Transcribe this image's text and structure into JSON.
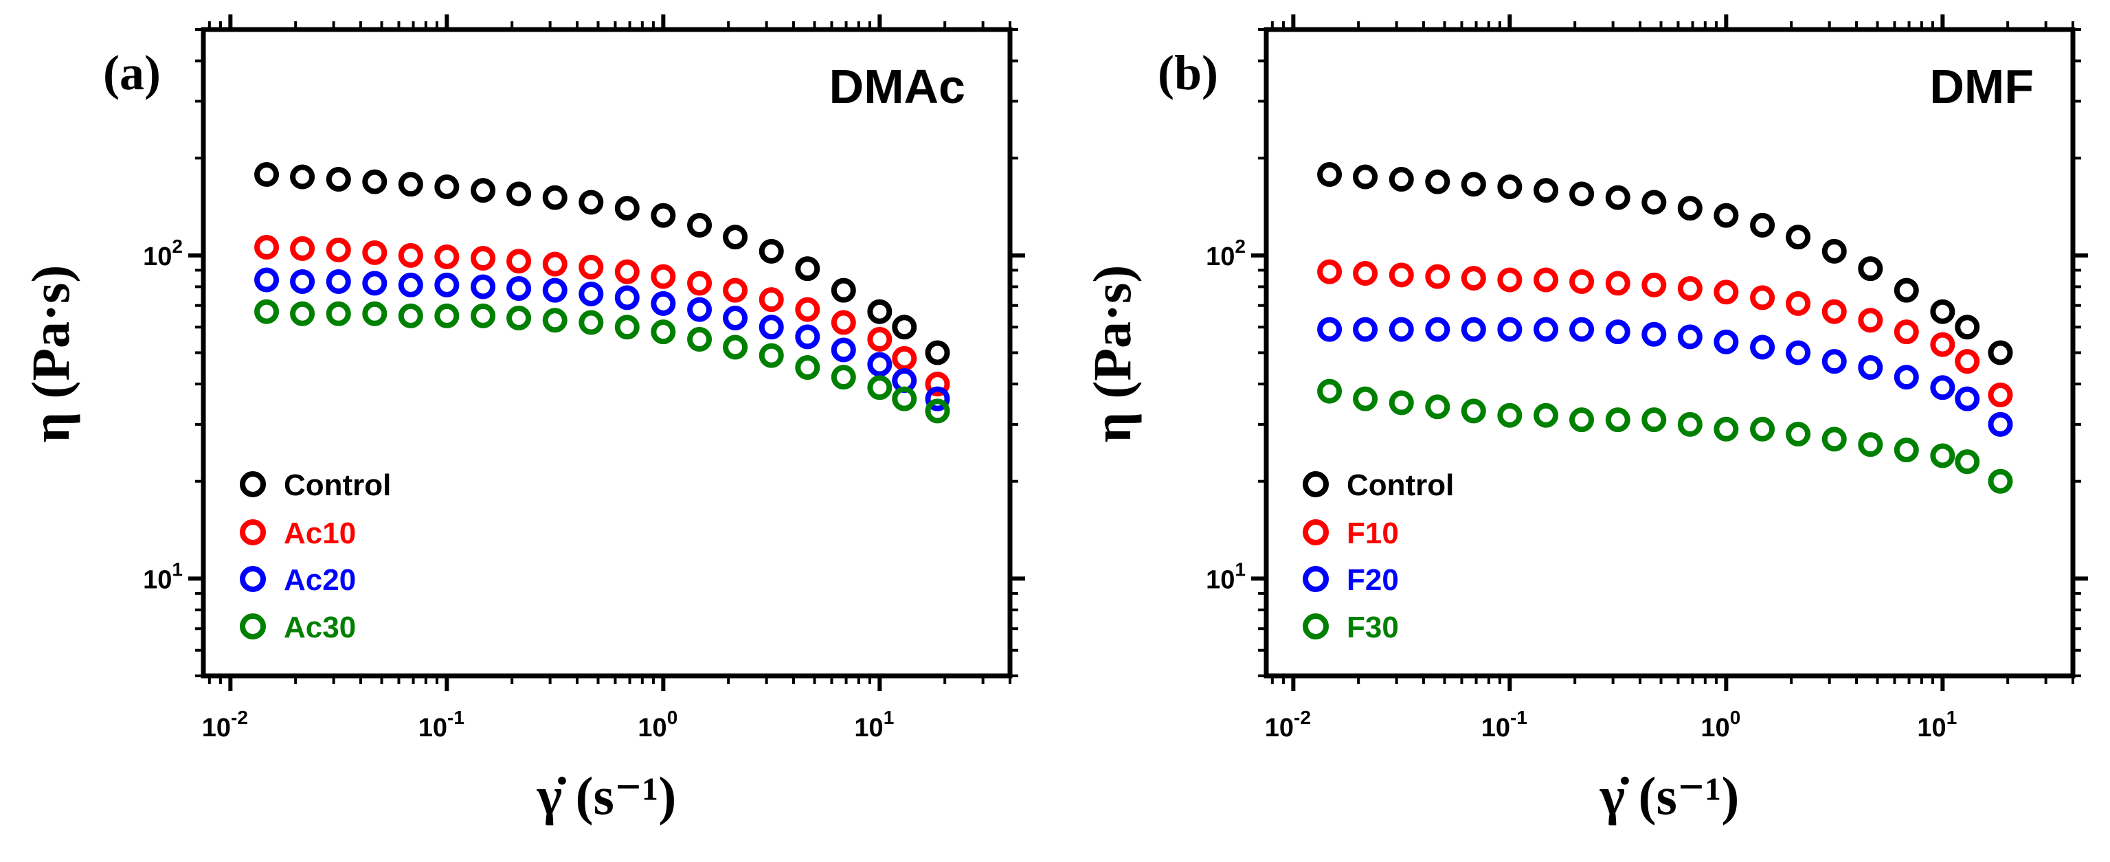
{
  "chart_data": [
    {
      "type": "scatter",
      "panel_label": "(a)",
      "title": "DMAc",
      "xlabel": "γ̇ (s⁻¹)",
      "ylabel": "η (Pa·s)",
      "xscale": "log",
      "yscale": "log",
      "xlim": [
        0.0075,
        40
      ],
      "ylim": [
        5,
        500
      ],
      "xticks": [
        0.01,
        0.1,
        1,
        10
      ],
      "xtick_labels": [
        {
          "base": "10",
          "exp": "-2"
        },
        {
          "base": "10",
          "exp": "-1"
        },
        {
          "base": "10",
          "exp": "0"
        },
        {
          "base": "10",
          "exp": "1"
        }
      ],
      "yticks": [
        10,
        100
      ],
      "ytick_labels": [
        {
          "base": "10",
          "exp": "1"
        },
        {
          "base": "10",
          "exp": "2"
        }
      ],
      "legend_position": "bottom-left",
      "x": [
        0.0147,
        0.0215,
        0.0316,
        0.0464,
        0.0681,
        0.1,
        0.147,
        0.215,
        0.316,
        0.464,
        0.681,
        1.0,
        1.47,
        2.15,
        3.16,
        4.64,
        6.81,
        10.0,
        13.0,
        18.5
      ],
      "series": [
        {
          "name": "Control",
          "color": "#000000",
          "x": [
            0.0147,
            0.0215,
            0.0316,
            0.0464,
            0.0681,
            0.1,
            0.147,
            0.215,
            0.316,
            0.464,
            0.681,
            1.0,
            1.47,
            2.15,
            3.16,
            4.64,
            6.81,
            10.0,
            13.0,
            18.5
          ],
          "values": [
            178,
            175,
            172,
            169,
            166,
            163,
            159,
            155,
            151,
            146,
            140,
            133,
            124,
            114,
            103,
            91,
            78,
            67,
            60,
            50
          ]
        },
        {
          "name": "Ac10",
          "color": "#ff0000",
          "x": [
            0.0147,
            0.0215,
            0.0316,
            0.0464,
            0.0681,
            0.1,
            0.147,
            0.215,
            0.316,
            0.464,
            0.681,
            1.0,
            1.47,
            2.15,
            3.16,
            4.64,
            6.81,
            10.0,
            13.0,
            18.5
          ],
          "values": [
            106,
            105,
            104,
            102,
            100,
            99,
            98,
            96,
            94,
            92,
            89,
            86,
            82,
            78,
            73,
            68,
            62,
            55,
            48,
            40
          ]
        },
        {
          "name": "Ac20",
          "color": "#0000ff",
          "x": [
            0.0147,
            0.0215,
            0.0316,
            0.0464,
            0.0681,
            0.1,
            0.147,
            0.215,
            0.316,
            0.464,
            0.681,
            1.0,
            1.47,
            2.15,
            3.16,
            4.64,
            6.81,
            10.0,
            13.0,
            18.5
          ],
          "values": [
            84,
            83,
            83,
            82,
            81,
            81,
            80,
            79,
            78,
            76,
            74,
            71,
            68,
            64,
            60,
            56,
            51,
            46,
            41,
            36
          ]
        },
        {
          "name": "Ac30",
          "color": "#008000",
          "x": [
            0.0147,
            0.0215,
            0.0316,
            0.0464,
            0.0681,
            0.1,
            0.147,
            0.215,
            0.316,
            0.464,
            0.681,
            1.0,
            1.47,
            2.15,
            3.16,
            4.64,
            6.81,
            10.0,
            13.0,
            18.5
          ],
          "values": [
            67,
            66,
            66,
            66,
            65,
            65,
            65,
            64,
            63,
            62,
            60,
            58,
            55,
            52,
            49,
            45,
            42,
            39,
            36,
            33
          ]
        }
      ]
    },
    {
      "type": "scatter",
      "panel_label": "(b)",
      "title": "DMF",
      "xlabel": "γ̇ (s⁻¹)",
      "ylabel": "η (Pa·s)",
      "xscale": "log",
      "yscale": "log",
      "xlim": [
        0.0075,
        40
      ],
      "ylim": [
        5,
        500
      ],
      "xticks": [
        0.01,
        0.1,
        1,
        10
      ],
      "xtick_labels": [
        {
          "base": "10",
          "exp": "-2"
        },
        {
          "base": "10",
          "exp": "-1"
        },
        {
          "base": "10",
          "exp": "0"
        },
        {
          "base": "10",
          "exp": "1"
        }
      ],
      "yticks": [
        10,
        100
      ],
      "ytick_labels": [
        {
          "base": "10",
          "exp": "1"
        },
        {
          "base": "10",
          "exp": "2"
        }
      ],
      "legend_position": "bottom-left",
      "series": [
        {
          "name": "Control",
          "color": "#000000",
          "x": [
            0.0147,
            0.0215,
            0.0316,
            0.0464,
            0.0681,
            0.1,
            0.147,
            0.215,
            0.316,
            0.464,
            0.681,
            1.0,
            1.47,
            2.15,
            3.16,
            4.64,
            6.81,
            10.0,
            13.0,
            18.5
          ],
          "values": [
            178,
            175,
            172,
            169,
            166,
            163,
            159,
            155,
            151,
            146,
            140,
            133,
            124,
            114,
            103,
            91,
            78,
            67,
            60,
            50
          ]
        },
        {
          "name": "F10",
          "color": "#ff0000",
          "x": [
            0.0147,
            0.0215,
            0.0316,
            0.0464,
            0.0681,
            0.1,
            0.147,
            0.215,
            0.316,
            0.464,
            0.681,
            1.0,
            1.47,
            2.15,
            3.16,
            4.64,
            6.81,
            10.0,
            13.0,
            18.5
          ],
          "values": [
            89,
            88,
            87,
            86,
            85,
            84,
            84,
            83,
            82,
            81,
            79,
            77,
            74,
            71,
            67,
            63,
            58,
            53,
            47,
            37
          ]
        },
        {
          "name": "F20",
          "color": "#0000ff",
          "x": [
            0.0147,
            0.0215,
            0.0316,
            0.0464,
            0.0681,
            0.1,
            0.147,
            0.215,
            0.316,
            0.464,
            0.681,
            1.0,
            1.47,
            2.15,
            3.16,
            4.64,
            6.81,
            10.0,
            13.0,
            18.5
          ],
          "values": [
            59,
            59,
            59,
            59,
            59,
            59,
            59,
            59,
            58,
            57,
            56,
            54,
            52,
            50,
            47,
            45,
            42,
            39,
            36,
            30
          ]
        },
        {
          "name": "F30",
          "color": "#008000",
          "x": [
            0.0147,
            0.0215,
            0.0316,
            0.0464,
            0.0681,
            0.1,
            0.147,
            0.215,
            0.316,
            0.464,
            0.681,
            1.0,
            1.47,
            2.15,
            3.16,
            4.64,
            6.81,
            10.0,
            13.0,
            18.5
          ],
          "values": [
            38,
            36,
            35,
            34,
            33,
            32,
            32,
            31,
            31,
            31,
            30,
            29,
            29,
            28,
            27,
            26,
            25,
            24,
            23,
            20
          ]
        }
      ]
    }
  ]
}
